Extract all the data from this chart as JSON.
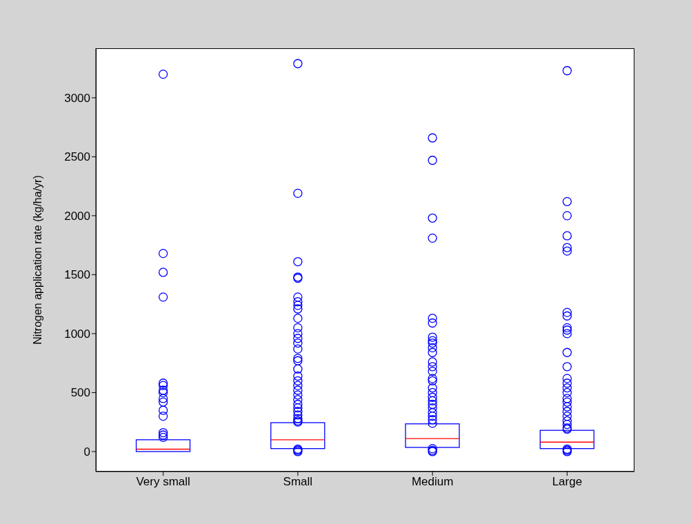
{
  "chart_data": {
    "type": "box",
    "ylabel": "Nitrogen application rate (kg/ha/yr)",
    "categories": [
      "Very small",
      "Small",
      "Medium",
      "Large"
    ],
    "color": "#0000ff",
    "ylim": [
      -170,
      3420
    ],
    "yticks": [
      0,
      500,
      1000,
      1500,
      2000,
      2500,
      3000
    ],
    "grid": false,
    "marker": "circle",
    "boxes": [
      {
        "low": 0,
        "q1": 0,
        "median": 20,
        "q3": 100,
        "high": 100,
        "outliers": [
          3200,
          1680,
          1520,
          1310,
          580,
          560,
          520,
          500,
          450,
          420,
          350,
          300,
          160,
          140,
          120
        ]
      },
      {
        "low": 25,
        "q1": 25,
        "median": 100,
        "q3": 245,
        "high": 245,
        "outliers": [
          3290,
          2190,
          1610,
          1480,
          1470,
          1310,
          1270,
          1240,
          1210,
          1130,
          1050,
          1000,
          960,
          920,
          870,
          790,
          770,
          700,
          640,
          600,
          560,
          520,
          480,
          440,
          400,
          370,
          340,
          310,
          280,
          260,
          250,
          0,
          10,
          20
        ]
      },
      {
        "low": 35,
        "q1": 35,
        "median": 110,
        "q3": 235,
        "high": 235,
        "outliers": [
          2660,
          2470,
          1980,
          1810,
          1130,
          1090,
          970,
          940,
          920,
          880,
          840,
          760,
          720,
          680,
          620,
          600,
          540,
          500,
          460,
          430,
          400,
          370,
          330,
          300,
          270,
          240,
          0,
          10,
          25
        ]
      },
      {
        "low": 25,
        "q1": 25,
        "median": 80,
        "q3": 180,
        "high": 180,
        "outliers": [
          3230,
          2120,
          2000,
          1830,
          1730,
          1700,
          1180,
          1150,
          1050,
          1030,
          1000,
          840,
          720,
          620,
          580,
          540,
          500,
          450,
          420,
          380,
          340,
          300,
          260,
          230,
          200,
          190,
          0,
          10,
          20
        ]
      }
    ]
  }
}
